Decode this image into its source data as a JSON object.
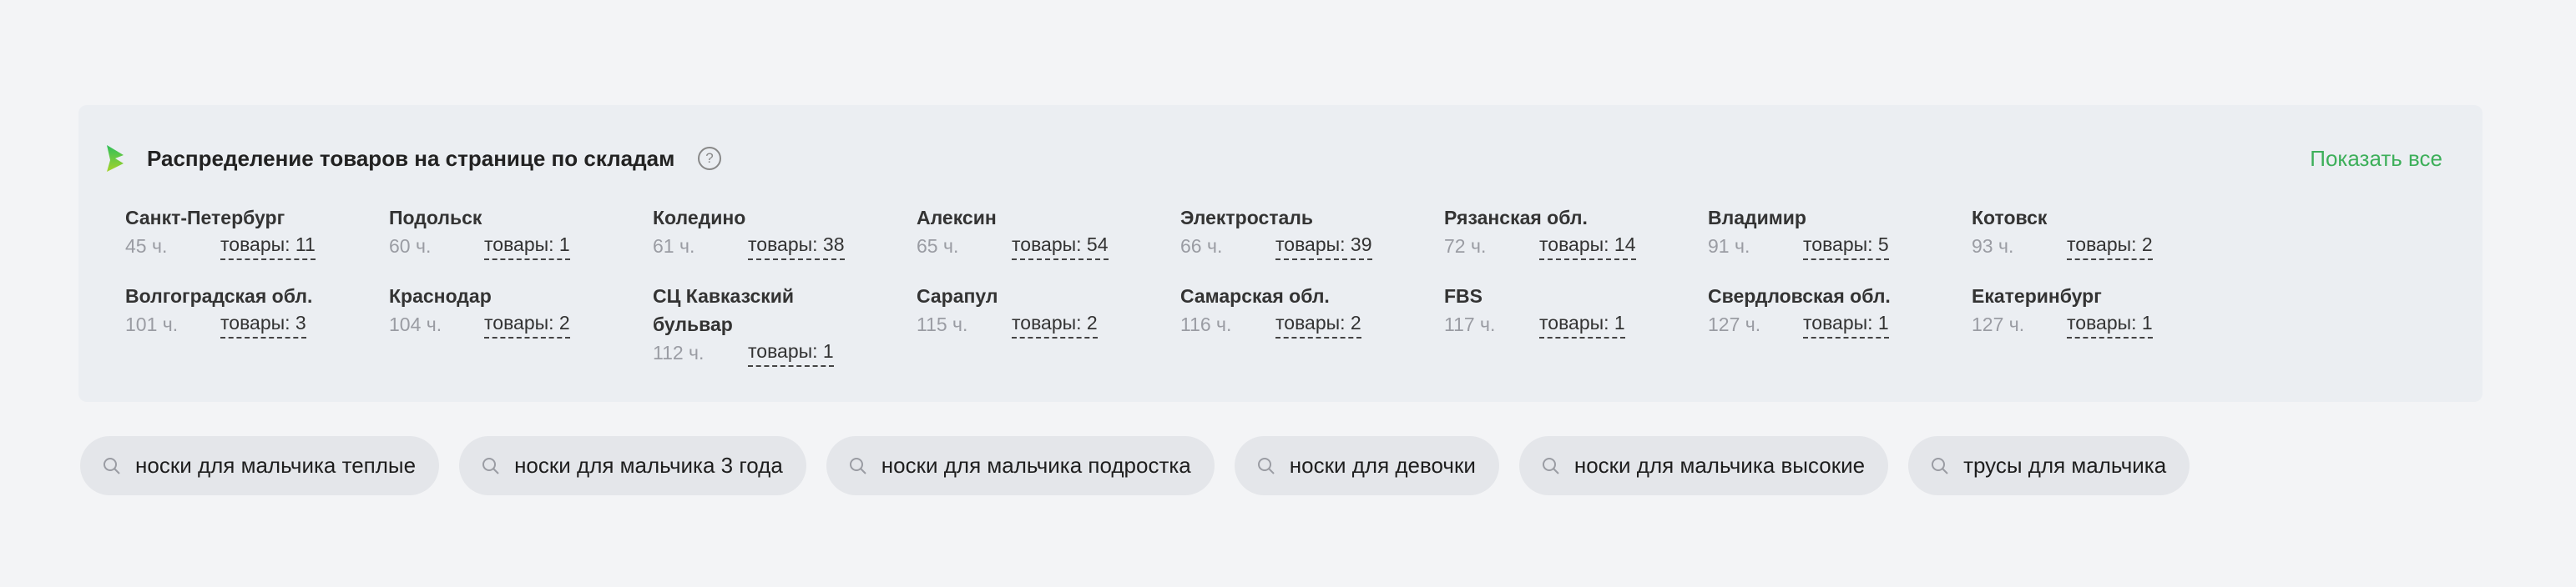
{
  "panel": {
    "title": "Распределение товаров на странице по складам",
    "help_icon": "question-circle-icon",
    "show_all_label": "Показать все",
    "accent_color": "#3daf5a",
    "warehouses": [
      {
        "name": "Санкт-Петербург",
        "hours": "45 ч.",
        "count": "товары: 11"
      },
      {
        "name": "Подольск",
        "hours": "60 ч.",
        "count": "товары: 1"
      },
      {
        "name": "Коледино",
        "hours": "61 ч.",
        "count": "товары: 38"
      },
      {
        "name": "Алексин",
        "hours": "65 ч.",
        "count": "товары: 54"
      },
      {
        "name": "Электросталь",
        "hours": "66 ч.",
        "count": "товары: 39"
      },
      {
        "name": "Рязанская обл.",
        "hours": "72 ч.",
        "count": "товары: 14"
      },
      {
        "name": "Владимир",
        "hours": "91 ч.",
        "count": "товары: 5"
      },
      {
        "name": "Котовск",
        "hours": "93 ч.",
        "count": "товары: 2"
      },
      {
        "name": "Волгоградская обл.",
        "hours": "101 ч.",
        "count": "товары: 3"
      },
      {
        "name": "Краснодар",
        "hours": "104 ч.",
        "count": "товары: 2"
      },
      {
        "name": "СЦ Кавказский бульвар",
        "hours": "112 ч.",
        "count": "товары: 1"
      },
      {
        "name": "Сарапул",
        "hours": "115 ч.",
        "count": "товары: 2"
      },
      {
        "name": "Самарская обл.",
        "hours": "116 ч.",
        "count": "товары: 2"
      },
      {
        "name": "FBS",
        "hours": "117 ч.",
        "count": "товары: 1"
      },
      {
        "name": "Свердловская обл.",
        "hours": "127 ч.",
        "count": "товары: 1"
      },
      {
        "name": "Екатеринбург",
        "hours": "127 ч.",
        "count": "товары: 1"
      }
    ]
  },
  "search_chips": [
    "носки для мальчика теплые",
    "носки для мальчика 3 года",
    "носки для мальчика подростка",
    "носки для девочки",
    "носки для мальчика высокие",
    "трусы для мальчика"
  ]
}
